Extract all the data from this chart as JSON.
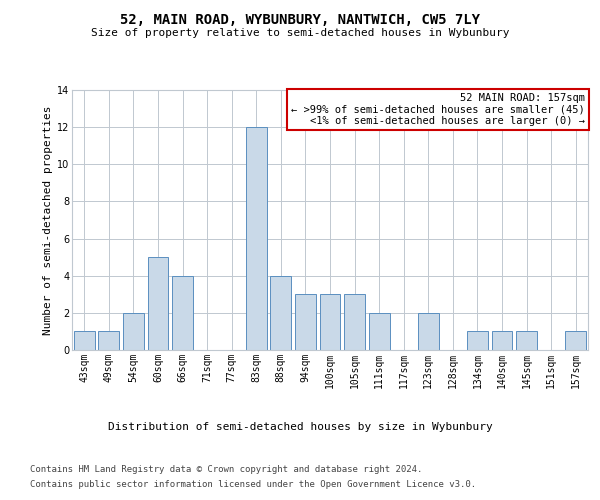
{
  "title": "52, MAIN ROAD, WYBUNBURY, NANTWICH, CW5 7LY",
  "subtitle": "Size of property relative to semi-detached houses in Wybunbury",
  "xlabel": "Distribution of semi-detached houses by size in Wybunbury",
  "ylabel": "Number of semi-detached properties",
  "categories": [
    "43sqm",
    "49sqm",
    "54sqm",
    "60sqm",
    "66sqm",
    "71sqm",
    "77sqm",
    "83sqm",
    "88sqm",
    "94sqm",
    "100sqm",
    "105sqm",
    "111sqm",
    "117sqm",
    "123sqm",
    "128sqm",
    "134sqm",
    "140sqm",
    "145sqm",
    "151sqm",
    "157sqm"
  ],
  "values": [
    1,
    1,
    2,
    5,
    4,
    0,
    0,
    12,
    4,
    3,
    3,
    3,
    2,
    0,
    2,
    0,
    1,
    1,
    1,
    0,
    1
  ],
  "highlight_index": 20,
  "bar_color_normal": "#c9d9e8",
  "bar_edge_color": "#5a8fc0",
  "ylim": [
    0,
    14
  ],
  "yticks": [
    0,
    2,
    4,
    6,
    8,
    10,
    12,
    14
  ],
  "annotation_title": "52 MAIN ROAD: 157sqm",
  "annotation_line1": "← >99% of semi-detached houses are smaller (45)",
  "annotation_line2": "<1% of semi-detached houses are larger (0) →",
  "box_color": "#cc0000",
  "footer_line1": "Contains HM Land Registry data © Crown copyright and database right 2024.",
  "footer_line2": "Contains public sector information licensed under the Open Government Licence v3.0.",
  "grid_color": "#c0c8d0",
  "background_color": "#ffffff",
  "title_fontsize": 10,
  "subtitle_fontsize": 8,
  "xlabel_fontsize": 8,
  "ylabel_fontsize": 8,
  "tick_fontsize": 7,
  "footer_fontsize": 6.5,
  "ann_fontsize": 7.5
}
